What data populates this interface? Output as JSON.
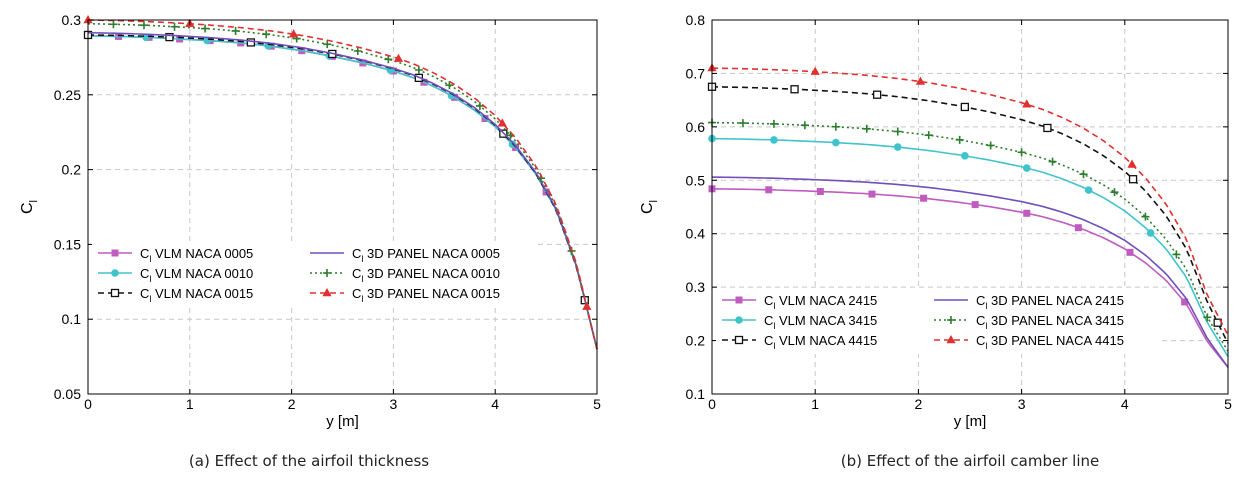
{
  "chart_data": [
    {
      "type": "line",
      "caption": "(a) Effect of the airfoil thickness",
      "xlabel": "y [m]",
      "ylabel": "C",
      "ylabel_sub": "l",
      "xlim": [
        0,
        5
      ],
      "ylim": [
        0.05,
        0.3
      ],
      "xticks": [
        0,
        1,
        2,
        3,
        4,
        5
      ],
      "yticks": [
        0.05,
        0.1,
        0.15,
        0.2,
        0.25,
        0.3
      ],
      "ytick_labels": [
        "0.05",
        "0.1",
        "0.15",
        "0.2",
        "0.25",
        "0.3"
      ],
      "grid": true,
      "legend": {
        "placement": "lower-left",
        "columns": 2
      },
      "series": [
        {
          "name": "VLM NACA 0005",
          "color": "#c05cc0",
          "dash": "solid",
          "marker": "square-filled",
          "x": [
            0,
            0.3,
            0.6,
            0.9,
            1.2,
            1.5,
            1.8,
            2.1,
            2.4,
            2.7,
            3.0,
            3.2,
            3.4,
            3.6,
            3.8,
            4.0,
            4.2,
            4.4,
            4.6,
            4.8,
            5.0
          ],
          "y": [
            0.2895,
            0.289,
            0.2884,
            0.2873,
            0.2862,
            0.2847,
            0.2825,
            0.2795,
            0.2757,
            0.2713,
            0.2659,
            0.2613,
            0.2555,
            0.2483,
            0.2396,
            0.2287,
            0.2148,
            0.1971,
            0.173,
            0.1352,
            0.08
          ],
          "marker_x": [
            0.3,
            0.6,
            0.9,
            1.2,
            1.5,
            1.8,
            2.1,
            2.4,
            2.7,
            3.0,
            3.3,
            3.6,
            3.9,
            4.2,
            4.5
          ]
        },
        {
          "name": "VLM NACA 0010",
          "color": "#40c4cc",
          "dash": "solid",
          "marker": "circle-filled",
          "x": [
            0,
            0.3,
            0.6,
            0.9,
            1.2,
            1.5,
            1.8,
            2.1,
            2.4,
            2.7,
            3.0,
            3.2,
            3.4,
            3.6,
            3.8,
            4.0,
            4.2,
            4.4,
            4.6,
            4.8,
            5.0
          ],
          "y": [
            0.2895,
            0.289,
            0.2884,
            0.2873,
            0.2862,
            0.2847,
            0.2825,
            0.2795,
            0.2757,
            0.2713,
            0.2659,
            0.2613,
            0.2555,
            0.2483,
            0.2396,
            0.2287,
            0.2148,
            0.1971,
            0.173,
            0.1352,
            0.08
          ],
          "marker_x": [
            0.57,
            1.17,
            1.77,
            2.37,
            2.97,
            3.57,
            4.17
          ]
        },
        {
          "name": "VLM NACA 0015",
          "color": "#111111",
          "dash": "dashed",
          "marker": "square-open",
          "x": [
            0,
            0.3,
            0.6,
            0.9,
            1.2,
            1.5,
            1.8,
            2.1,
            2.4,
            2.7,
            3.0,
            3.2,
            3.4,
            3.6,
            3.8,
            4.0,
            4.2,
            4.4,
            4.6,
            4.8,
            5.0
          ],
          "y": [
            0.29,
            0.2897,
            0.2891,
            0.2883,
            0.2872,
            0.2857,
            0.2836,
            0.2808,
            0.2773,
            0.2728,
            0.2673,
            0.2628,
            0.2569,
            0.2497,
            0.2408,
            0.2297,
            0.2155,
            0.1974,
            0.1728,
            0.1345,
            0.08
          ],
          "marker_x": [
            0,
            0.8,
            1.6,
            2.4,
            3.25,
            4.08,
            4.88
          ]
        },
        {
          "name": "3D PANEL NACA 0005",
          "color": "#7050b8",
          "dash": "solid",
          "marker": "none",
          "x": [
            0,
            0.3,
            0.6,
            0.9,
            1.2,
            1.5,
            1.8,
            2.1,
            2.4,
            2.7,
            3.0,
            3.2,
            3.4,
            3.6,
            3.8,
            4.0,
            4.2,
            4.4,
            4.6,
            4.8,
            5.0
          ],
          "y": [
            0.2915,
            0.2911,
            0.2904,
            0.2894,
            0.2882,
            0.2866,
            0.2844,
            0.2815,
            0.2777,
            0.2732,
            0.2677,
            0.2632,
            0.2573,
            0.2501,
            0.2413,
            0.2302,
            0.2161,
            0.1981,
            0.1736,
            0.1351,
            0.08
          ],
          "marker_x": []
        },
        {
          "name": "3D PANEL NACA 0010",
          "color": "#2e7d2e",
          "dash": "dotted",
          "marker": "plus",
          "x": [
            0,
            0.3,
            0.6,
            0.9,
            1.2,
            1.5,
            1.8,
            2.1,
            2.4,
            2.7,
            3.0,
            3.2,
            3.4,
            3.6,
            3.8,
            4.0,
            4.2,
            4.4,
            4.6,
            4.8,
            5.0
          ],
          "y": [
            0.2975,
            0.2971,
            0.2964,
            0.2953,
            0.2941,
            0.2924,
            0.2901,
            0.2871,
            0.2832,
            0.2785,
            0.2728,
            0.2681,
            0.262,
            0.2546,
            0.2454,
            0.2339,
            0.2193,
            0.2006,
            0.1751,
            0.1358,
            0.08
          ],
          "marker_x": [
            0.25,
            0.55,
            0.85,
            1.15,
            1.45,
            1.75,
            2.05,
            2.35,
            2.65,
            2.95,
            3.25,
            3.55,
            3.85,
            4.15,
            4.45,
            4.75
          ]
        },
        {
          "name": "3D PANEL NACA 0015",
          "color": "#e03030",
          "dash": "dashed",
          "marker": "triangle-filled",
          "x": [
            0,
            0.3,
            0.6,
            0.9,
            1.2,
            1.5,
            1.8,
            2.1,
            2.4,
            2.7,
            3.0,
            3.2,
            3.4,
            3.6,
            3.8,
            4.0,
            4.2,
            4.4,
            4.6,
            4.8,
            5.0
          ],
          "y": [
            0.3,
            0.2996,
            0.2989,
            0.2979,
            0.2966,
            0.2949,
            0.2927,
            0.2897,
            0.2858,
            0.2811,
            0.2753,
            0.2706,
            0.2645,
            0.257,
            0.2477,
            0.2361,
            0.2213,
            0.2024,
            0.1765,
            0.1368,
            0.08
          ],
          "marker_x": [
            0,
            1.0,
            2.02,
            3.05,
            4.07,
            4.9
          ]
        }
      ]
    },
    {
      "type": "line",
      "caption": "(b) Effect of the airfoil camber line",
      "xlabel": "y [m]",
      "ylabel": "C",
      "ylabel_sub": "l",
      "xlim": [
        0,
        5
      ],
      "ylim": [
        0.1,
        0.8
      ],
      "xticks": [
        0,
        1,
        2,
        3,
        4,
        5
      ],
      "yticks": [
        0.1,
        0.2,
        0.3,
        0.4,
        0.5,
        0.6,
        0.7,
        0.8
      ],
      "ytick_labels": [
        "0.1",
        "0.2",
        "0.3",
        "0.4",
        "0.5",
        "0.6",
        "0.7",
        "0.8"
      ],
      "grid": true,
      "legend": {
        "placement": "lower-left",
        "columns": 2
      },
      "series": [
        {
          "name": "VLM NACA 2415",
          "color": "#c05cc0",
          "dash": "solid",
          "marker": "square-filled",
          "x": [
            0,
            0.3,
            0.6,
            0.9,
            1.2,
            1.5,
            1.8,
            2.1,
            2.4,
            2.7,
            3.0,
            3.2,
            3.4,
            3.6,
            3.8,
            4.0,
            4.2,
            4.4,
            4.6,
            4.8,
            5.0
          ],
          "y": [
            0.484,
            0.4833,
            0.482,
            0.4801,
            0.4779,
            0.4749,
            0.4709,
            0.4655,
            0.4586,
            0.4504,
            0.4403,
            0.432,
            0.4212,
            0.408,
            0.3918,
            0.3716,
            0.3457,
            0.3127,
            0.2678,
            0.1977,
            0.15
          ],
          "marker_x": [
            0,
            0.55,
            1.05,
            1.55,
            2.05,
            2.55,
            3.05,
            3.55,
            4.05,
            4.58
          ]
        },
        {
          "name": "VLM NACA 3415",
          "color": "#40c4cc",
          "dash": "solid",
          "marker": "circle-filled",
          "x": [
            0,
            0.3,
            0.6,
            0.9,
            1.2,
            1.5,
            1.8,
            2.1,
            2.4,
            2.7,
            3.0,
            3.2,
            3.4,
            3.6,
            3.8,
            4.0,
            4.2,
            4.4,
            4.6,
            4.8,
            5.0
          ],
          "y": [
            0.578,
            0.5771,
            0.5756,
            0.5733,
            0.5706,
            0.567,
            0.5621,
            0.5557,
            0.5474,
            0.5374,
            0.5253,
            0.5153,
            0.5024,
            0.4865,
            0.4669,
            0.4426,
            0.4114,
            0.3717,
            0.3177,
            0.2334,
            0.17
          ],
          "marker_x": [
            0,
            0.6,
            1.2,
            1.8,
            2.45,
            3.05,
            3.65,
            4.25
          ]
        },
        {
          "name": "VLM NACA 4415",
          "color": "#111111",
          "dash": "dashed",
          "marker": "square-open",
          "x": [
            0,
            0.3,
            0.6,
            0.9,
            1.2,
            1.5,
            1.8,
            2.1,
            2.4,
            2.7,
            3.0,
            3.2,
            3.4,
            3.6,
            3.8,
            4.0,
            4.2,
            4.4,
            4.6,
            4.8,
            5.0
          ],
          "y": [
            0.675,
            0.6739,
            0.6721,
            0.6695,
            0.6663,
            0.6621,
            0.6564,
            0.6489,
            0.6392,
            0.6275,
            0.6134,
            0.6017,
            0.5866,
            0.568,
            0.5451,
            0.5166,
            0.4802,
            0.4337,
            0.3705,
            0.2719,
            0.195
          ],
          "marker_x": [
            0,
            0.8,
            1.6,
            2.45,
            3.25,
            4.08,
            4.9
          ]
        },
        {
          "name": "3D PANEL NACA 2415",
          "color": "#7050b8",
          "dash": "solid",
          "marker": "none",
          "x": [
            0,
            0.3,
            0.6,
            0.9,
            1.2,
            1.5,
            1.8,
            2.1,
            2.4,
            2.7,
            3.0,
            3.2,
            3.4,
            3.6,
            3.8,
            4.0,
            4.2,
            4.4,
            4.6,
            4.8,
            5.0
          ],
          "y": [
            0.506,
            0.5052,
            0.5038,
            0.5019,
            0.4995,
            0.4964,
            0.4922,
            0.4865,
            0.4793,
            0.4706,
            0.4601,
            0.4513,
            0.44,
            0.4261,
            0.4089,
            0.3875,
            0.3601,
            0.3251,
            0.2777,
            0.2038,
            0.15
          ],
          "marker_x": []
        },
        {
          "name": "3D PANEL NACA 3415",
          "color": "#2e7d2e",
          "dash": "dotted",
          "marker": "plus",
          "x": [
            0,
            0.3,
            0.6,
            0.9,
            1.2,
            1.5,
            1.8,
            2.1,
            2.4,
            2.7,
            3.0,
            3.2,
            3.4,
            3.6,
            3.8,
            4.0,
            4.2,
            4.4,
            4.6,
            4.8,
            5.0
          ],
          "y": [
            0.608,
            0.6071,
            0.6055,
            0.6031,
            0.6002,
            0.5964,
            0.5913,
            0.5845,
            0.5757,
            0.5652,
            0.5524,
            0.5418,
            0.5282,
            0.5114,
            0.4907,
            0.4649,
            0.4319,
            0.3898,
            0.3327,
            0.2435,
            0.18
          ],
          "marker_x": [
            0,
            0.3,
            0.6,
            0.9,
            1.2,
            1.5,
            1.8,
            2.1,
            2.4,
            2.7,
            3.0,
            3.3,
            3.6,
            3.9,
            4.2,
            4.5,
            4.8
          ]
        },
        {
          "name": "3D PANEL NACA 4415",
          "color": "#e03030",
          "dash": "dashed",
          "marker": "triangle-filled",
          "x": [
            0,
            0.3,
            0.6,
            0.9,
            1.2,
            1.5,
            1.8,
            2.1,
            2.4,
            2.7,
            3.0,
            3.2,
            3.4,
            3.6,
            3.8,
            4.0,
            4.2,
            4.4,
            4.6,
            4.8,
            5.0
          ],
          "y": [
            0.71,
            0.7089,
            0.707,
            0.7043,
            0.7009,
            0.6965,
            0.6905,
            0.6826,
            0.6723,
            0.6601,
            0.6452,
            0.6329,
            0.617,
            0.5974,
            0.5732,
            0.543,
            0.5046,
            0.4555,
            0.3888,
            0.2846,
            0.21
          ],
          "marker_x": [
            0,
            1.0,
            2.02,
            3.05,
            4.07
          ]
        }
      ]
    }
  ]
}
